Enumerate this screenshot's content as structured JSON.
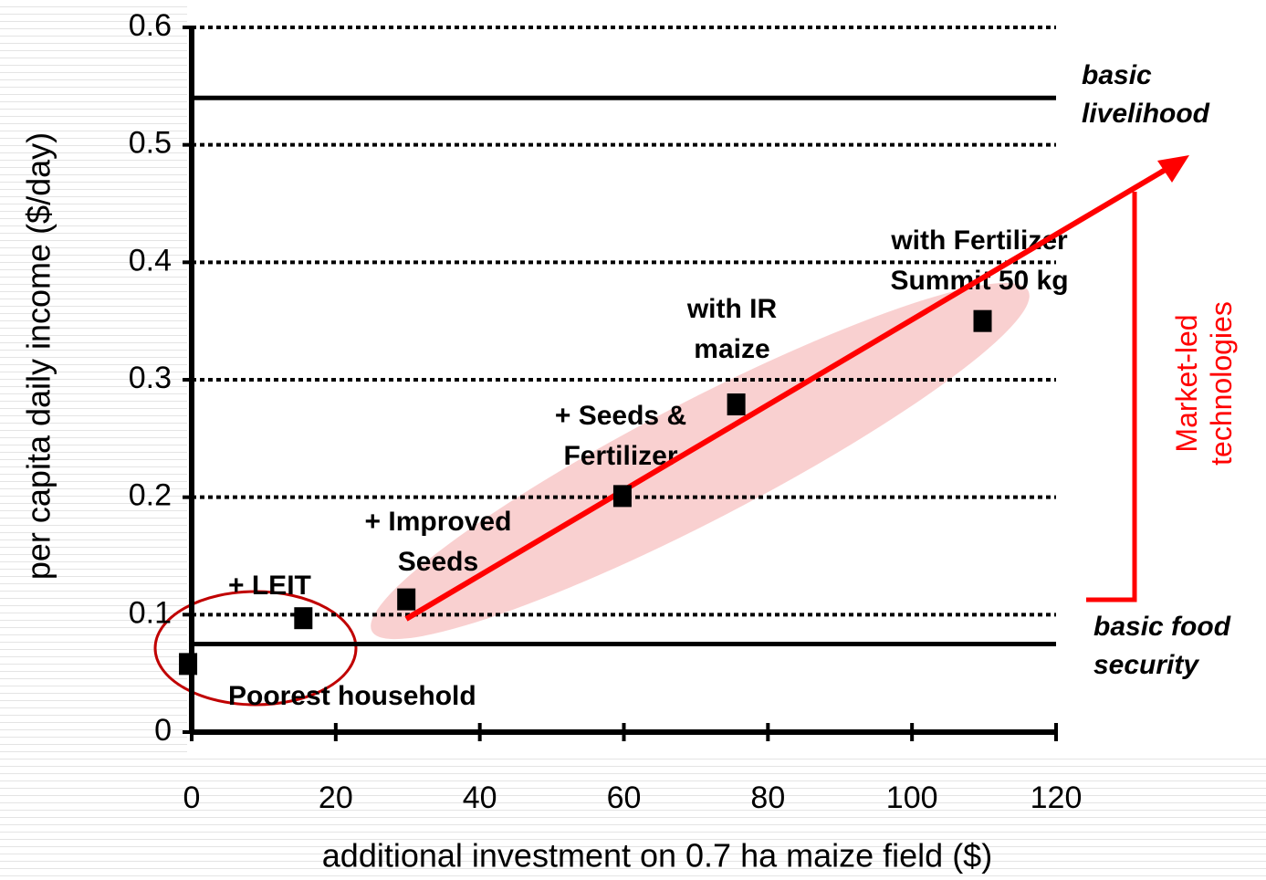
{
  "chart_data": {
    "type": "scatter",
    "x_label": "additional investment on 0.7 ha maize field ($)",
    "y_label": "per capita daily income ($/day)",
    "x": [
      -0.5,
      15.5,
      29.8,
      59.8,
      75.6,
      109.8
    ],
    "values": [
      0.058,
      0.097,
      0.113,
      0.201,
      0.279,
      0.35
    ],
    "color": "#000000",
    "xlim": [
      0,
      120
    ],
    "xticks": [
      0,
      20,
      40,
      60,
      80,
      100,
      120
    ],
    "ylim": [
      0,
      0.6
    ],
    "yticks": [
      0,
      0.1,
      0.2,
      0.3,
      0.4,
      0.5,
      0.6
    ],
    "grid": true,
    "reference_lines": [
      {
        "value": 0.54,
        "label": [
          "basic",
          "livelihood"
        ]
      },
      {
        "value": 0.075,
        "label": [
          "basic food",
          "security"
        ]
      }
    ],
    "point_labels": [
      [
        "Poorest household"
      ],
      [
        "+ LEIT"
      ],
      [
        "+ Improved",
        "Seeds"
      ],
      [
        "+ Seeds &",
        "Fertilizer"
      ],
      [
        "with IR",
        "maize"
      ],
      [
        "with Fertilizer",
        "Summit 50 kg"
      ]
    ],
    "bracket_label": [
      "Market-led",
      "technologies"
    ]
  }
}
